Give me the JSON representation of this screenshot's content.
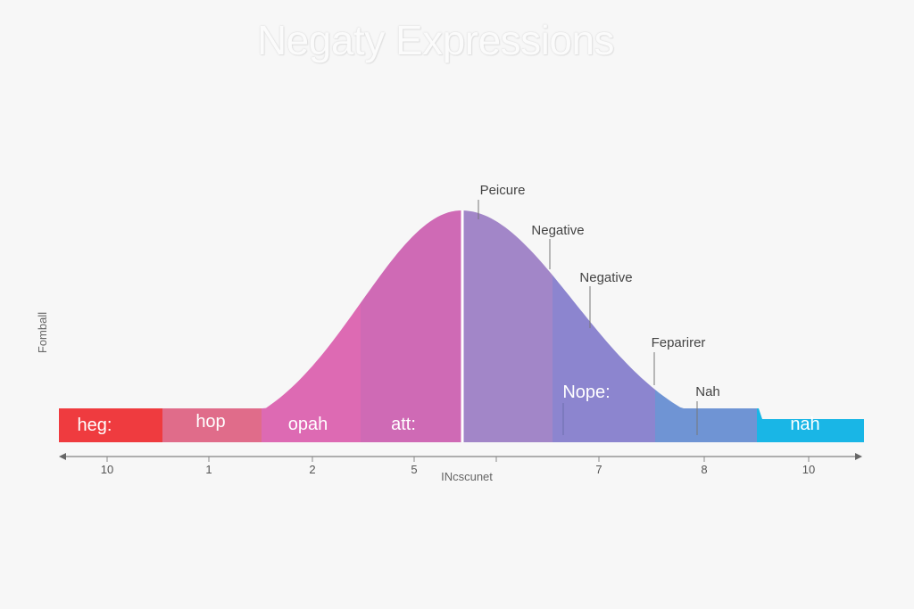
{
  "chart_data": {
    "type": "area",
    "title": "Negaty Expressions",
    "ylabel": "Fomball",
    "xlabel": "INcscunet",
    "x_tick_labels": [
      "10",
      "1",
      "2",
      "5",
      "",
      "7",
      "8",
      "10"
    ],
    "segments": [
      {
        "label": "heg:",
        "color": "#ef3b3f"
      },
      {
        "label": "hop",
        "color": "#e06c8a"
      },
      {
        "label": "opah",
        "color": "#dd6ab3"
      },
      {
        "label": "att:",
        "color": "#cf6ab5"
      },
      {
        "label": "",
        "color": "#a286c8"
      },
      {
        "label": "Nope:",
        "color": "#8c85cf"
      },
      {
        "label": "",
        "color": "#6f94d4"
      },
      {
        "label": "nah",
        "color": "#19b6e6"
      }
    ],
    "annotations": [
      "Peicure",
      "Negative",
      "Negative",
      "Feparirer",
      "Nah"
    ],
    "curve": {
      "peak": 1.0,
      "baseline": 0.0
    }
  }
}
